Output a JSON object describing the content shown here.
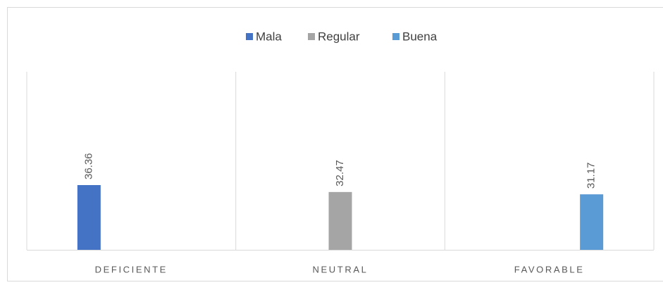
{
  "chart_data": {
    "type": "bar",
    "categories": [
      "DEFICIENTE",
      "NEUTRAL",
      "FAVORABLE"
    ],
    "series": [
      {
        "name": "Mala",
        "color": "#4472c4",
        "values": [
          36.36,
          null,
          null
        ]
      },
      {
        "name": "Regular",
        "color": "#a5a5a5",
        "values": [
          null,
          32.47,
          null
        ]
      },
      {
        "name": "Buena",
        "color": "#5b9bd5",
        "values": [
          null,
          null,
          31.17
        ]
      }
    ],
    "ylim": [
      0,
      100
    ],
    "legend": "top"
  }
}
